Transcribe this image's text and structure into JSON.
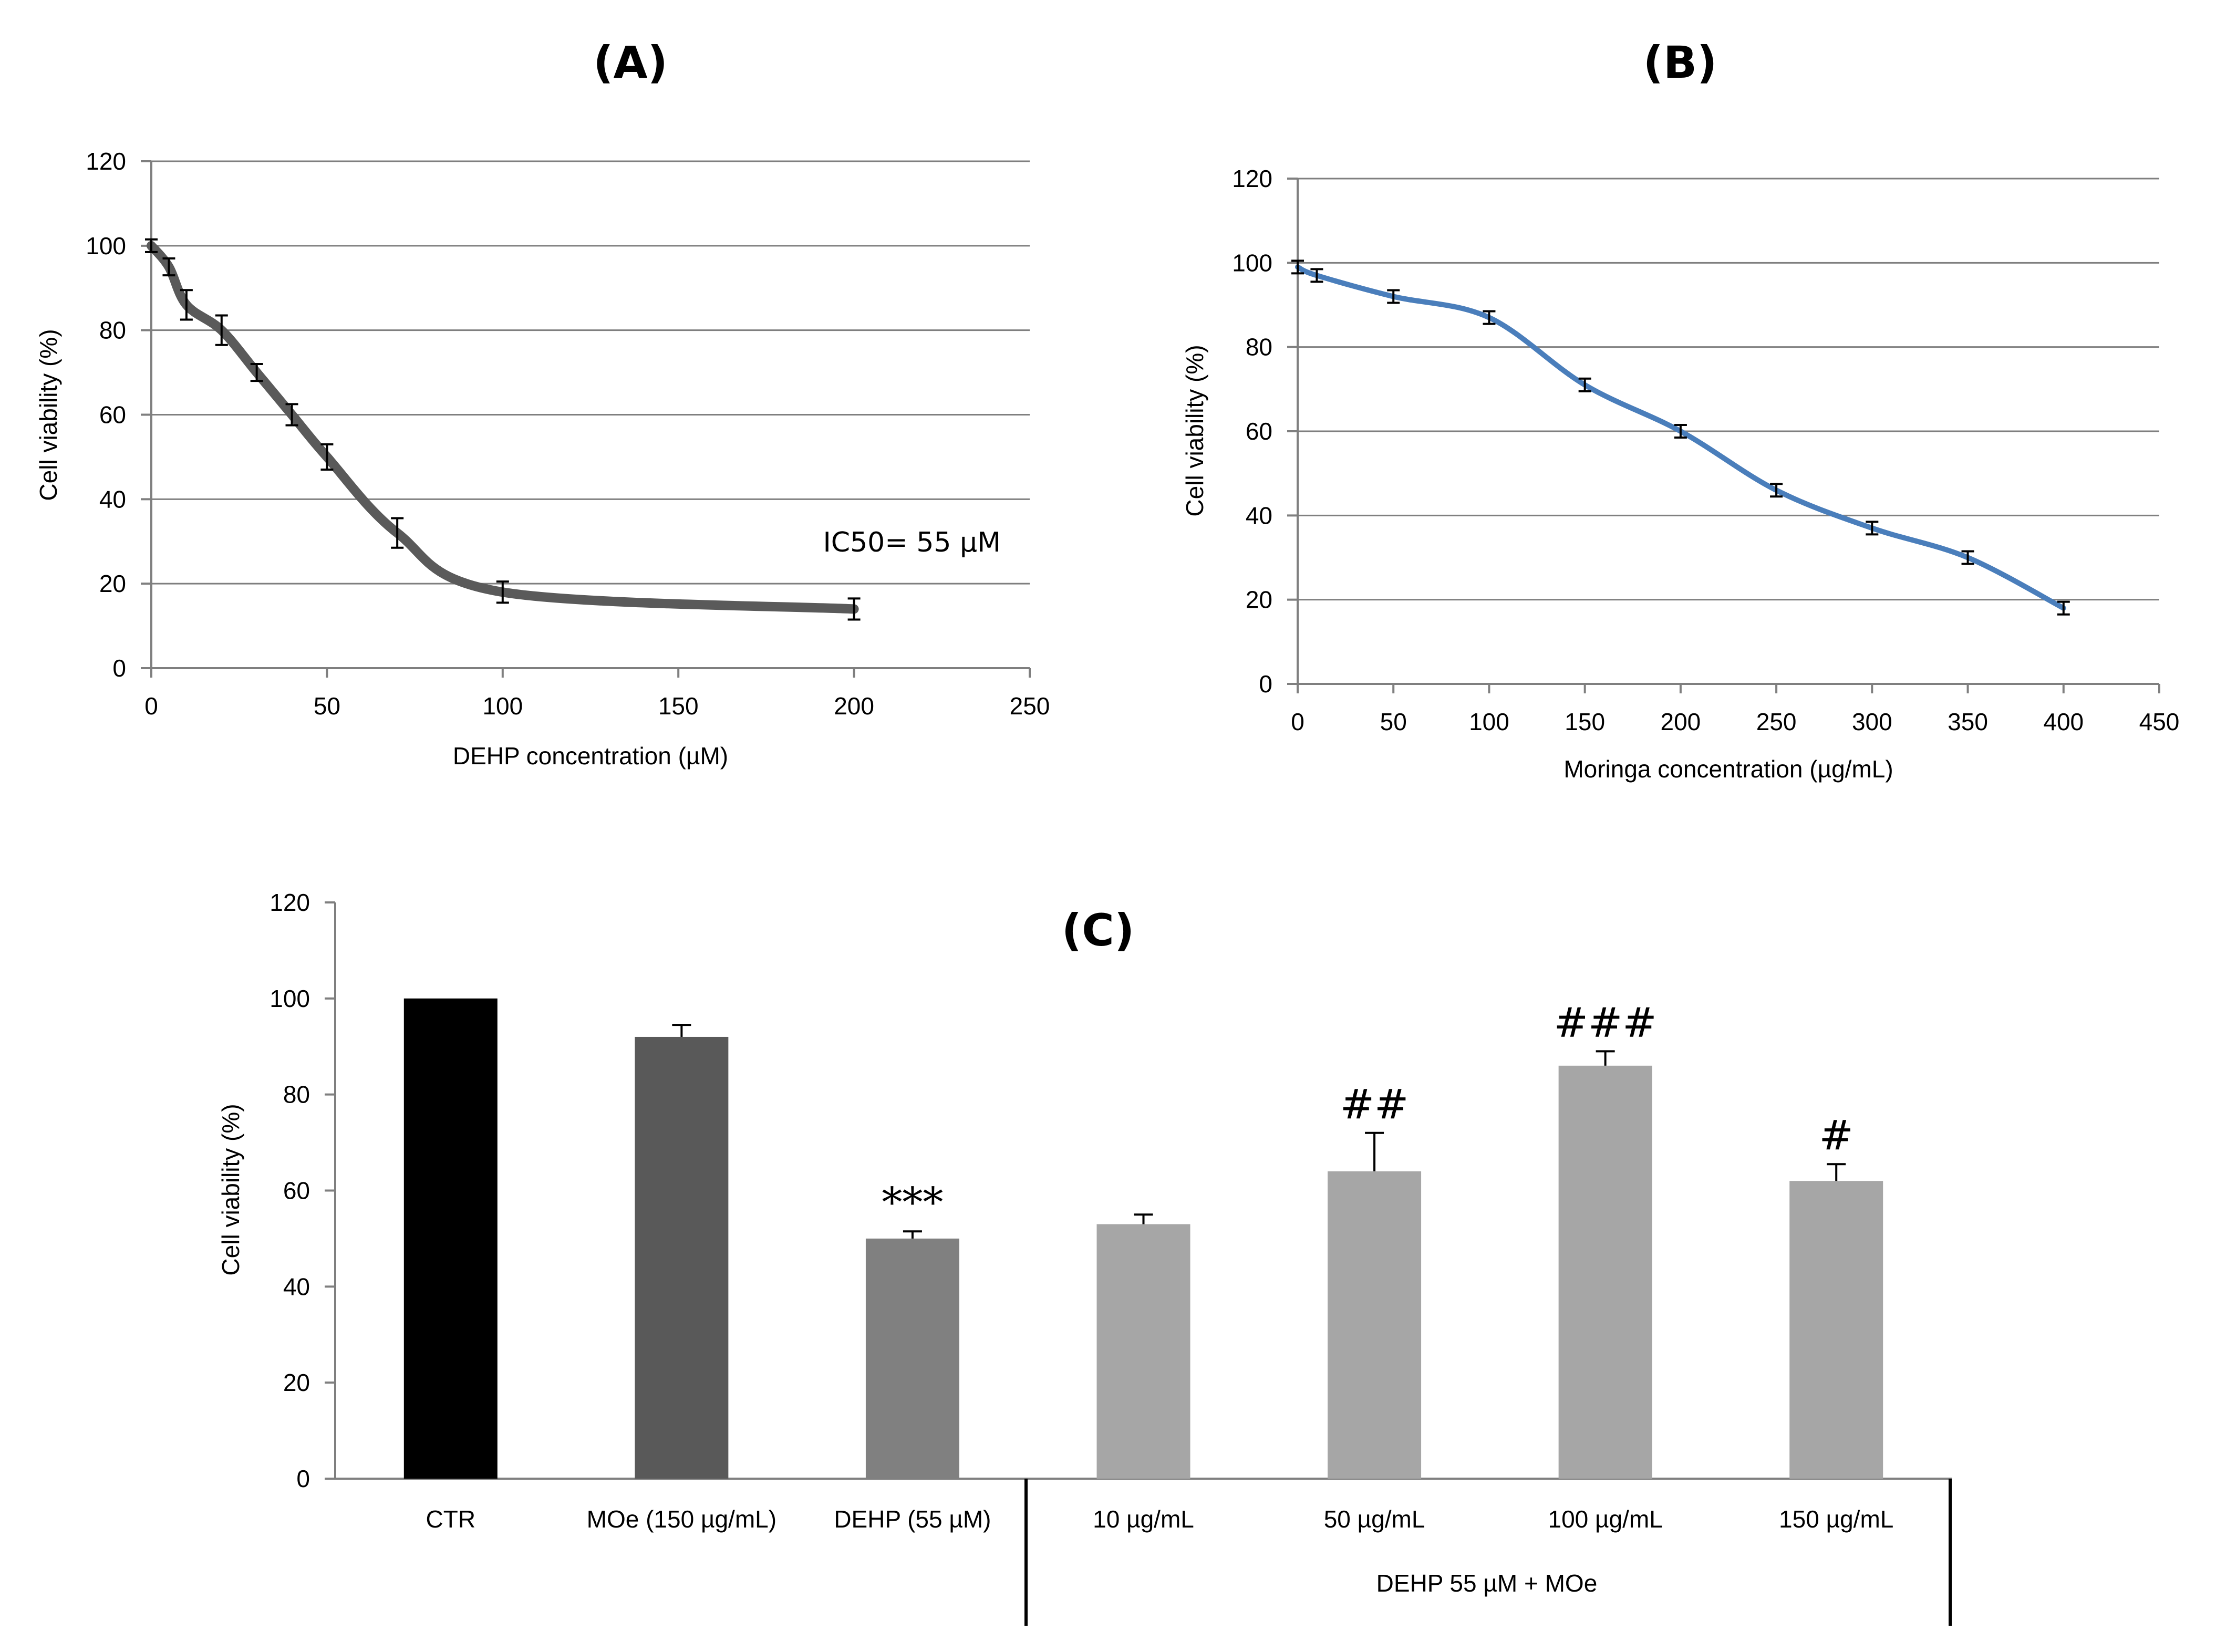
{
  "chart_data": [
    {
      "id": "A",
      "type": "line",
      "title": "(A)",
      "xlabel": "DEHP concentration (µM)",
      "ylabel": "Cell viability (%)",
      "xlim": [
        0,
        250
      ],
      "ylim": [
        0,
        120
      ],
      "xticks": [
        0,
        50,
        100,
        150,
        200,
        250
      ],
      "yticks": [
        0,
        20,
        40,
        60,
        80,
        100,
        120
      ],
      "grid": true,
      "color": "#5a5a5a",
      "annotation": "IC50= 55 µM",
      "x": [
        0,
        5,
        10,
        20,
        30,
        40,
        50,
        70,
        100,
        200
      ],
      "y": [
        100,
        95,
        86,
        80,
        70,
        60,
        50,
        32,
        18,
        14
      ],
      "err": [
        1,
        1.5,
        3,
        3,
        1.5,
        2,
        2.5,
        3,
        2,
        2
      ]
    },
    {
      "id": "B",
      "type": "line",
      "title": "(B)",
      "xlabel": "Moringa concentration (µg/mL)",
      "ylabel": "Cell viability (%)",
      "xlim": [
        0,
        450
      ],
      "ylim": [
        0,
        120
      ],
      "xticks": [
        0,
        50,
        100,
        150,
        200,
        250,
        300,
        350,
        400,
        450
      ],
      "yticks": [
        0,
        20,
        40,
        60,
        80,
        100,
        120
      ],
      "grid": true,
      "color": "#4a7ebb",
      "x": [
        0,
        10,
        50,
        100,
        150,
        200,
        250,
        300,
        350,
        400
      ],
      "y": [
        99,
        97,
        92,
        87,
        71,
        60,
        46,
        37,
        30,
        18
      ],
      "err": [
        1,
        1,
        1,
        1,
        1,
        1,
        1,
        1,
        1,
        1
      ]
    },
    {
      "id": "C",
      "type": "bar",
      "title": "(C)",
      "ylabel": "Cell viability (%)",
      "ylim": [
        0,
        120
      ],
      "yticks": [
        0,
        20,
        40,
        60,
        80,
        100,
        120
      ],
      "grid": false,
      "categories": [
        "CTR",
        "MOe (150 µg/mL)",
        "DEHP (55 µM)",
        "10 µg/mL",
        "50 µg/mL",
        "100 µg/mL",
        "150 µg/mL"
      ],
      "values": [
        100,
        92,
        50,
        53,
        64,
        86,
        62
      ],
      "err": [
        0,
        2.5,
        1.5,
        2,
        8,
        3,
        3.5
      ],
      "colors": [
        "#000000",
        "#595959",
        "#808080",
        "#a6a6a6",
        "#a6a6a6",
        "#a6a6a6",
        "#a6a6a6"
      ],
      "significance": [
        "",
        "",
        "***",
        "",
        "##",
        "###",
        "#"
      ],
      "group_label": "DEHP 55 µM + MOe"
    }
  ]
}
